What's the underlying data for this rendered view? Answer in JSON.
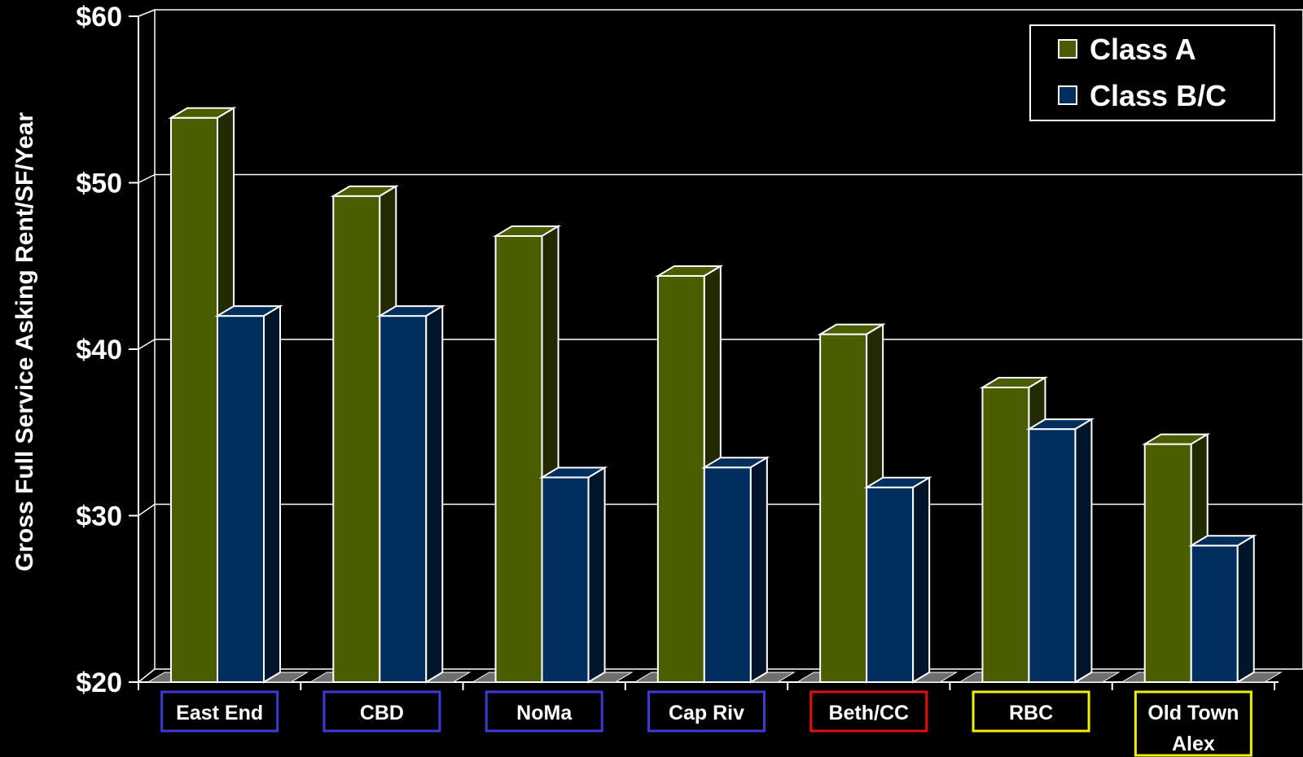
{
  "chart_data": {
    "type": "bar",
    "title": "",
    "xlabel": "",
    "ylabel": "Gross Full Service Asking Rent/SF/Year",
    "ylim": [
      20,
      60
    ],
    "yticks": [
      "$20",
      "$30",
      "$40",
      "$50",
      "$60"
    ],
    "grid": true,
    "legend_position": "top-right",
    "categories": [
      [
        "East End"
      ],
      [
        "CBD"
      ],
      [
        "NoMa"
      ],
      [
        "Cap Riv"
      ],
      [
        "Beth/CC"
      ],
      [
        "RBC"
      ],
      [
        "Old Town",
        "Alex"
      ]
    ],
    "category_box_colors": [
      "#3b3bd6",
      "#3b3bd6",
      "#3b3bd6",
      "#3b3bd6",
      "#e01010",
      "#f0f000",
      "#f0f000"
    ],
    "series": [
      {
        "name": "Class A",
        "color": "#4a5e00",
        "values": [
          53.9,
          49.2,
          46.8,
          44.4,
          40.9,
          37.7,
          34.3
        ]
      },
      {
        "name": "Class B/C",
        "color": "#002f5e",
        "values": [
          42.0,
          42.0,
          32.3,
          32.9,
          31.7,
          35.2,
          28.2
        ]
      }
    ]
  }
}
